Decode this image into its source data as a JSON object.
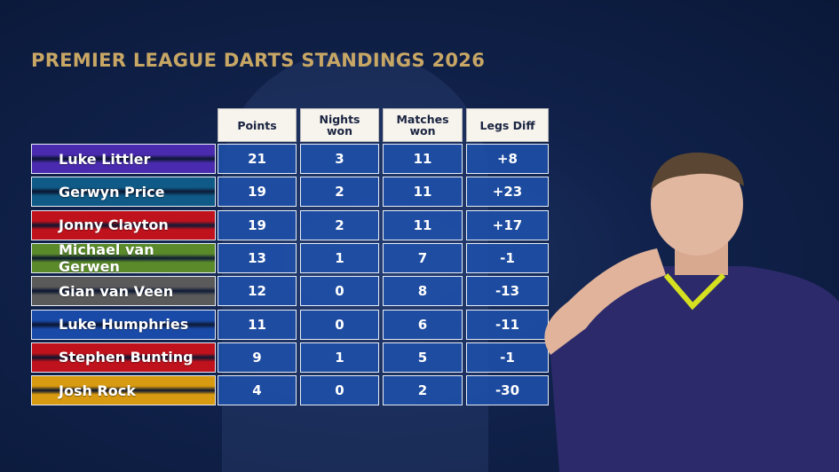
{
  "title": "PREMIER LEAGUE DARTS STANDINGS 2026",
  "chart_data": {
    "type": "table",
    "title": "PREMIER LEAGUE DARTS STANDINGS 2026",
    "columns": [
      "Points",
      "Nights won",
      "Matches won",
      "Legs Diff"
    ],
    "rows": [
      {
        "player": "Luke Littler",
        "color": "#4a2bb0",
        "values": [
          "21",
          "3",
          "11",
          "+8"
        ]
      },
      {
        "player": "Gerwyn Price",
        "color": "#0f5a86",
        "values": [
          "19",
          "2",
          "11",
          "+23"
        ]
      },
      {
        "player": "Jonny Clayton",
        "color": "#c0121c",
        "values": [
          "19",
          "2",
          "11",
          "+17"
        ]
      },
      {
        "player": "Michael van Gerwen",
        "color": "#5a8a2a",
        "values": [
          "13",
          "1",
          "7",
          "-1"
        ]
      },
      {
        "player": "Gian van Veen",
        "color": "#5a5a5a",
        "values": [
          "12",
          "0",
          "8",
          "-13"
        ]
      },
      {
        "player": "Luke Humphries",
        "color": "#1a4aa8",
        "values": [
          "11",
          "0",
          "6",
          "-11"
        ]
      },
      {
        "player": "Stephen Bunting",
        "color": "#c0121c",
        "values": [
          "9",
          "1",
          "5",
          "-1"
        ]
      },
      {
        "player": "Josh Rock",
        "color": "#d89a10",
        "values": [
          "4",
          "0",
          "2",
          "-30"
        ]
      }
    ]
  }
}
